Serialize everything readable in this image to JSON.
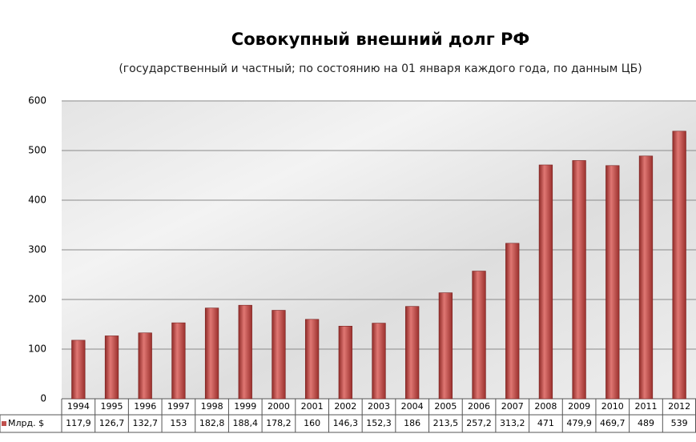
{
  "chart_data": {
    "type": "bar",
    "title": "Совокупный внешний долг РФ",
    "subtitle": "(государственный и частный; по состоянию на 01 января каждого года, по данным ЦБ)",
    "categories": [
      "1994",
      "1995",
      "1996",
      "1997",
      "1998",
      "1999",
      "2000",
      "2001",
      "2002",
      "2003",
      "2004",
      "2005",
      "2006",
      "2007",
      "2008",
      "2009",
      "2010",
      "2011",
      "2012"
    ],
    "series": [
      {
        "name": "Млрд. $",
        "color": "#c0504d",
        "values": [
          117.9,
          126.7,
          132.7,
          153,
          182.8,
          188.4,
          178.2,
          160,
          146.3,
          152.3,
          186,
          213.5,
          257.2,
          313.2,
          471,
          479.9,
          469.7,
          489,
          539
        ],
        "value_labels": [
          "117,9",
          "126,7",
          "132,7",
          "153",
          "182,8",
          "188,4",
          "178,2",
          "160",
          "146,3",
          "152,3",
          "186",
          "213,5",
          "257,2",
          "313,2",
          "471",
          "479,9",
          "469,7",
          "489",
          "539"
        ]
      }
    ],
    "ylim": [
      0,
      600
    ],
    "yticks": [
      0,
      100,
      200,
      300,
      400,
      500,
      600
    ],
    "grid": true
  }
}
